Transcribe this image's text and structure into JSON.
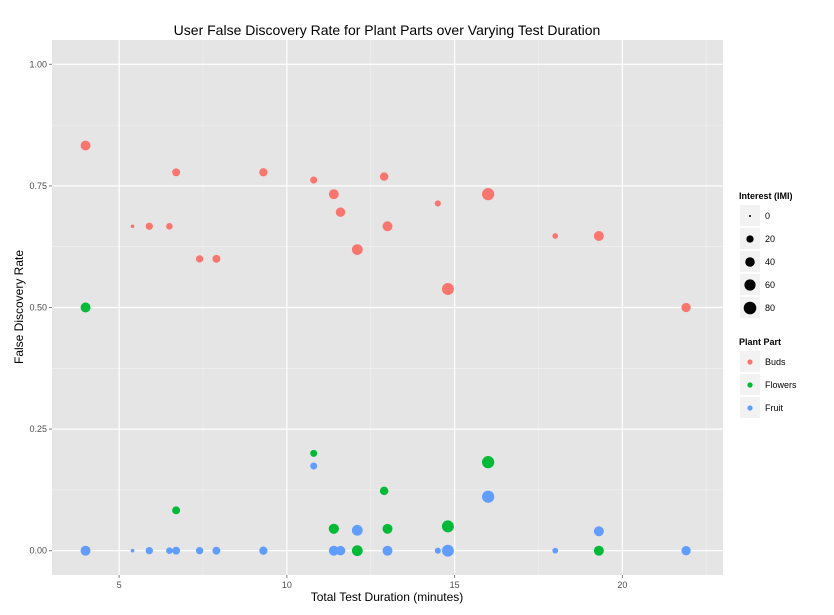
{
  "chart_data": {
    "type": "scatter",
    "title": "User False Discovery Rate for Plant Parts over Varying Test Duration",
    "xlabel": "Total Test Duration (minutes)",
    "ylabel": "False Discovery Rate",
    "xlim": [
      3.0,
      23.0
    ],
    "ylim": [
      -0.05,
      1.05
    ],
    "xticks": [
      5,
      10,
      15,
      20
    ],
    "yticks": [
      0.0,
      0.25,
      0.5,
      0.75,
      1.0
    ],
    "ytick_labels": [
      "0.00",
      "0.25",
      "0.50",
      "0.75",
      "1.00"
    ],
    "grid": true,
    "background": "#e5e5e5",
    "legend_placement": "right",
    "size_legend": {
      "title": "Interest (IMI)",
      "levels": [
        0,
        20,
        40,
        60,
        80
      ]
    },
    "color_legend": {
      "title": "Plant Part",
      "entries": [
        {
          "name": "Buds",
          "color": "#f8766d"
        },
        {
          "name": "Flowers",
          "color": "#00ba38"
        },
        {
          "name": "Fruit",
          "color": "#619cff"
        }
      ]
    },
    "series": [
      {
        "name": "Buds",
        "color": "#f8766d",
        "points": [
          {
            "x": 4.0,
            "y": 0.833,
            "interest": 45
          },
          {
            "x": 5.4,
            "y": 0.667,
            "interest": 2
          },
          {
            "x": 5.9,
            "y": 0.667,
            "interest": 20
          },
          {
            "x": 6.5,
            "y": 0.667,
            "interest": 15
          },
          {
            "x": 6.7,
            "y": 0.778,
            "interest": 25
          },
          {
            "x": 7.4,
            "y": 0.6,
            "interest": 20
          },
          {
            "x": 7.9,
            "y": 0.6,
            "interest": 25
          },
          {
            "x": 9.3,
            "y": 0.778,
            "interest": 28
          },
          {
            "x": 10.8,
            "y": 0.762,
            "interest": 18
          },
          {
            "x": 11.4,
            "y": 0.733,
            "interest": 45
          },
          {
            "x": 11.6,
            "y": 0.696,
            "interest": 40
          },
          {
            "x": 12.1,
            "y": 0.619,
            "interest": 55
          },
          {
            "x": 12.9,
            "y": 0.769,
            "interest": 30
          },
          {
            "x": 13.0,
            "y": 0.667,
            "interest": 45
          },
          {
            "x": 14.5,
            "y": 0.714,
            "interest": 12
          },
          {
            "x": 14.8,
            "y": 0.538,
            "interest": 70
          },
          {
            "x": 16.0,
            "y": 0.733,
            "interest": 75
          },
          {
            "x": 18.0,
            "y": 0.647,
            "interest": 10
          },
          {
            "x": 19.3,
            "y": 0.647,
            "interest": 45
          },
          {
            "x": 21.9,
            "y": 0.5,
            "interest": 38
          }
        ]
      },
      {
        "name": "Flowers",
        "color": "#00ba38",
        "points": [
          {
            "x": 4.0,
            "y": 0.5,
            "interest": 45
          },
          {
            "x": 6.7,
            "y": 0.083,
            "interest": 25
          },
          {
            "x": 10.8,
            "y": 0.2,
            "interest": 18
          },
          {
            "x": 11.4,
            "y": 0.045,
            "interest": 48
          },
          {
            "x": 12.1,
            "y": 0.0,
            "interest": 55
          },
          {
            "x": 12.9,
            "y": 0.123,
            "interest": 30
          },
          {
            "x": 13.0,
            "y": 0.045,
            "interest": 45
          },
          {
            "x": 14.8,
            "y": 0.05,
            "interest": 70
          },
          {
            "x": 16.0,
            "y": 0.182,
            "interest": 75
          },
          {
            "x": 19.3,
            "y": 0.0,
            "interest": 45
          }
        ]
      },
      {
        "name": "Fruit",
        "color": "#619cff",
        "points": [
          {
            "x": 4.0,
            "y": 0.0,
            "interest": 45
          },
          {
            "x": 5.4,
            "y": 0.0,
            "interest": 2
          },
          {
            "x": 5.9,
            "y": 0.0,
            "interest": 20
          },
          {
            "x": 6.5,
            "y": 0.0,
            "interest": 15
          },
          {
            "x": 6.7,
            "y": 0.0,
            "interest": 25
          },
          {
            "x": 7.4,
            "y": 0.0,
            "interest": 20
          },
          {
            "x": 7.9,
            "y": 0.0,
            "interest": 25
          },
          {
            "x": 9.3,
            "y": 0.0,
            "interest": 28
          },
          {
            "x": 10.8,
            "y": 0.174,
            "interest": 18
          },
          {
            "x": 11.4,
            "y": 0.0,
            "interest": 45
          },
          {
            "x": 11.6,
            "y": 0.0,
            "interest": 40
          },
          {
            "x": 12.1,
            "y": 0.042,
            "interest": 55
          },
          {
            "x": 13.0,
            "y": 0.0,
            "interest": 45
          },
          {
            "x": 14.5,
            "y": 0.0,
            "interest": 12
          },
          {
            "x": 14.8,
            "y": 0.0,
            "interest": 70
          },
          {
            "x": 16.0,
            "y": 0.111,
            "interest": 75
          },
          {
            "x": 18.0,
            "y": 0.0,
            "interest": 10
          },
          {
            "x": 19.3,
            "y": 0.04,
            "interest": 45
          },
          {
            "x": 21.9,
            "y": 0.0,
            "interest": 38
          }
        ]
      }
    ]
  }
}
